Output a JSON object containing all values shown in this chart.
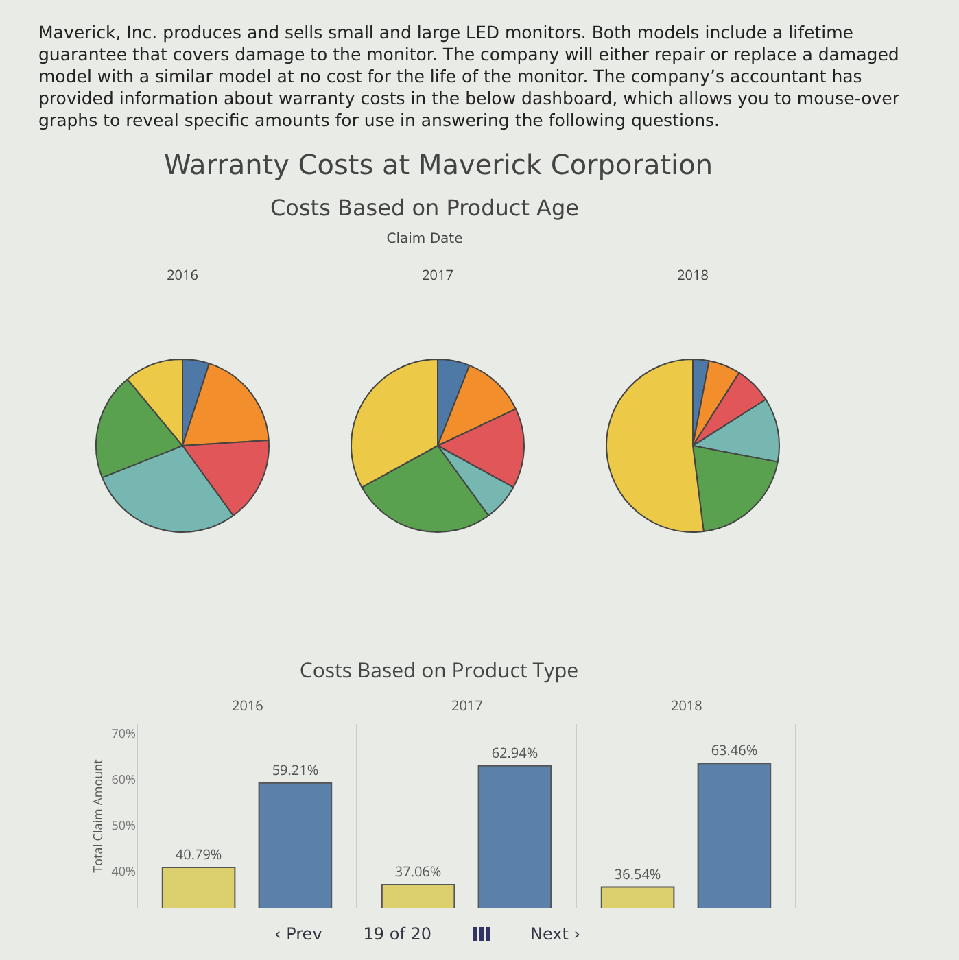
{
  "chart_data": [
    {
      "type": "other",
      "title": "Warranty Costs at Maverick Corporation",
      "subtitle": "Costs Based on Product Age",
      "annotations": [
        "Maverick, Inc. produces and sells small and large LED monitors. Both models include a lifetime guarantee that covers damage to the monitor. The company will either repair or replace a damaged model with a similar model at no cost for the life of the monitor. The company’s accountant has provided information about warranty costs in the below dashboard, which allows you to mouse-over graphs to reveal specific amounts for use in answering the following questions.",
        "Claim Date"
      ]
    },
    {
      "type": "pie",
      "title": "2016",
      "categories": [
        null,
        null,
        null,
        null,
        null,
        null
      ],
      "values": [
        5,
        19,
        16,
        29,
        20,
        11
      ],
      "colors": [
        "#4e79a7",
        "#f28e2b",
        "#e15759",
        "#76b7b2",
        "#59a14f",
        "#edc948"
      ]
    },
    {
      "type": "pie",
      "title": "2017",
      "categories": [
        null,
        null,
        null,
        null,
        null,
        null
      ],
      "values": [
        6,
        12,
        15,
        7,
        27,
        33
      ],
      "colors": [
        "#4e79a7",
        "#f28e2b",
        "#e15759",
        "#76b7b2",
        "#59a14f",
        "#edc948"
      ]
    },
    {
      "type": "pie",
      "title": "2018",
      "categories": [
        null,
        null,
        null,
        null,
        null,
        null
      ],
      "values": [
        3,
        6,
        7,
        12,
        20,
        52
      ],
      "colors": [
        "#4e79a7",
        "#f28e2b",
        "#e15759",
        "#76b7b2",
        "#59a14f",
        "#edc948"
      ]
    },
    {
      "type": "bar",
      "title": "Costs Based on Product Type",
      "ylabel": "Total Claim Amount",
      "categories": [
        "2016",
        "2017",
        "2018"
      ],
      "series": [
        {
          "color": "#dccf6e",
          "values": [
            40.79,
            37.06,
            36.54
          ],
          "value_labels": [
            "40.79%",
            "37.06%",
            "36.54%"
          ]
        },
        {
          "color": "#5b80aa",
          "values": [
            59.21,
            62.94,
            63.46
          ],
          "value_labels": [
            "59.21%",
            "62.94%",
            "63.46%"
          ]
        }
      ],
      "ylim": [
        32,
        72
      ],
      "yticks": [
        {
          "value": 40,
          "label": "40%"
        },
        {
          "value": 50,
          "label": "50%"
        },
        {
          "value": 60,
          "label": "60%"
        },
        {
          "value": 70,
          "label": "70%"
        }
      ],
      "grid": false,
      "annotations": [
        "‹ Prev",
        "19 of 20",
        "Next ›"
      ]
    }
  ]
}
